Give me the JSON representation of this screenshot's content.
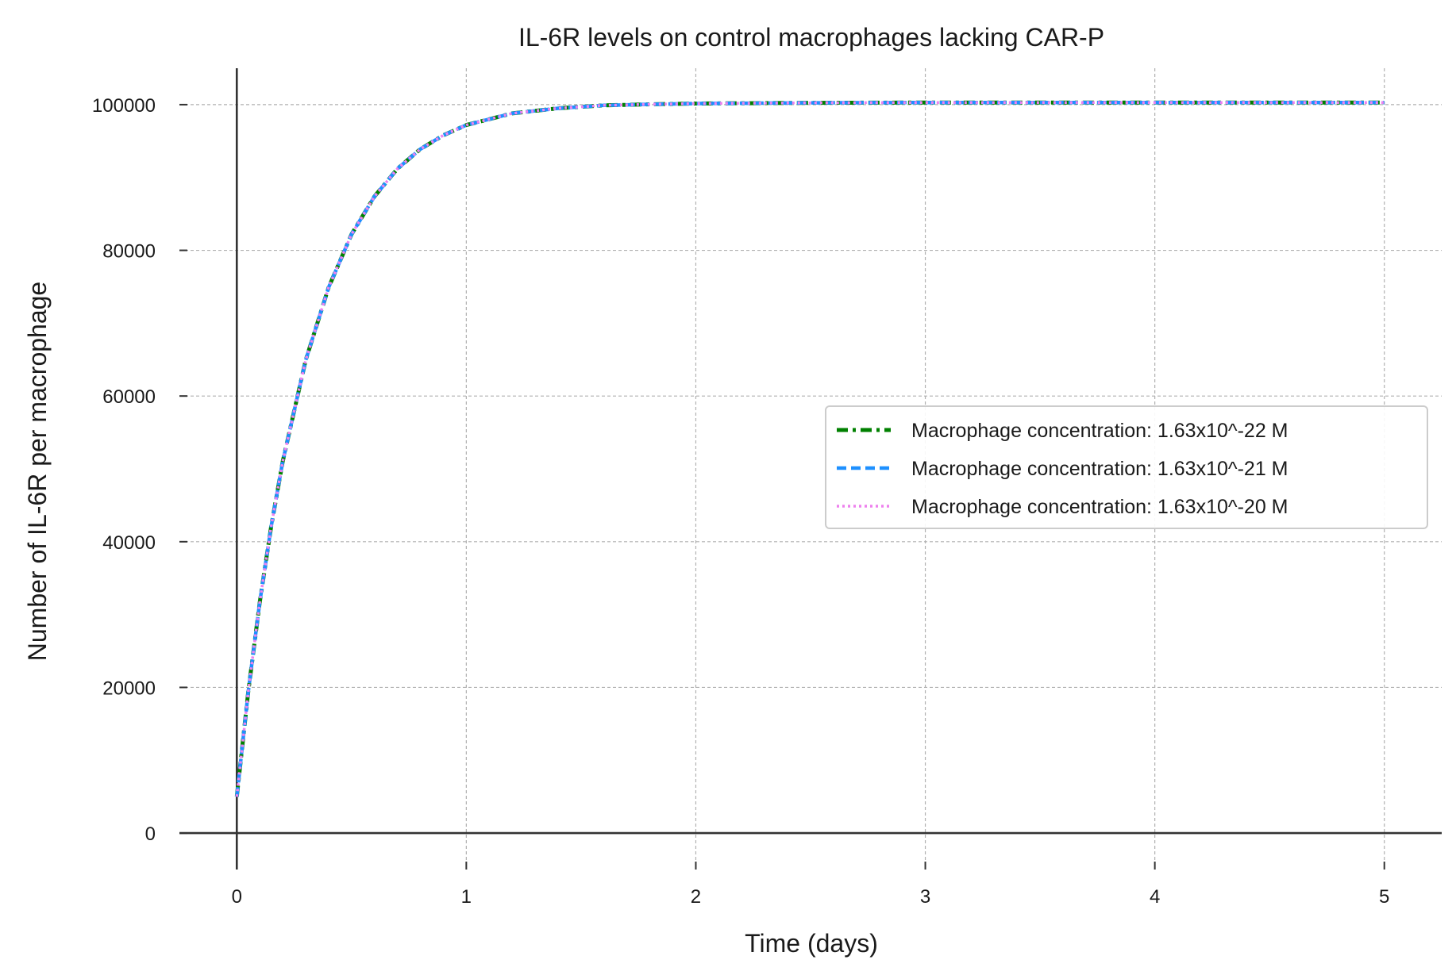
{
  "chart_data": {
    "type": "line",
    "title": "IL-6R levels on control macrophages lacking CAR-P",
    "xlabel": "Time (days)",
    "ylabel": "Number of IL-6R per macrophage",
    "xlim": [
      -0.25,
      5.25
    ],
    "ylim": [
      -5000,
      105000
    ],
    "x_ticks": [
      0,
      1,
      2,
      3,
      4,
      5
    ],
    "y_ticks": [
      0,
      20000,
      40000,
      60000,
      80000,
      100000
    ],
    "grid": true,
    "legend_position": "center-right",
    "x": [
      0,
      0.05,
      0.1,
      0.15,
      0.2,
      0.3,
      0.4,
      0.5,
      0.6,
      0.7,
      0.8,
      0.9,
      1.0,
      1.2,
      1.4,
      1.6,
      1.8,
      2.0,
      2.5,
      3.0,
      3.5,
      4.0,
      4.5,
      5.0
    ],
    "series": [
      {
        "name": "Macrophage concentration: 1.63x10^-22 M",
        "color": "#008000",
        "style": "dashdot",
        "values": [
          5000,
          19400,
          31700,
          42100,
          51000,
          64900,
          74900,
          82200,
          87400,
          91200,
          93900,
          95800,
          97200,
          98800,
          99500,
          99900,
          100050,
          100150,
          100250,
          100300,
          100300,
          100300,
          100300,
          100300
        ]
      },
      {
        "name": "Macrophage concentration: 1.63x10^-21 M",
        "color": "#1e90ff",
        "style": "dashed",
        "values": [
          5000,
          19400,
          31700,
          42100,
          51000,
          64900,
          74900,
          82200,
          87400,
          91200,
          93900,
          95800,
          97200,
          98800,
          99500,
          99900,
          100050,
          100150,
          100250,
          100300,
          100300,
          100300,
          100300,
          100300
        ]
      },
      {
        "name": "Macrophage concentration: 1.63x10^-20 M",
        "color": "#ee82ee",
        "style": "dotted",
        "values": [
          5000,
          19400,
          31700,
          42100,
          51000,
          64900,
          74900,
          82200,
          87400,
          91200,
          93900,
          95800,
          97200,
          98800,
          99500,
          99900,
          100050,
          100150,
          100250,
          100300,
          100300,
          100300,
          100300,
          100300
        ]
      }
    ]
  }
}
